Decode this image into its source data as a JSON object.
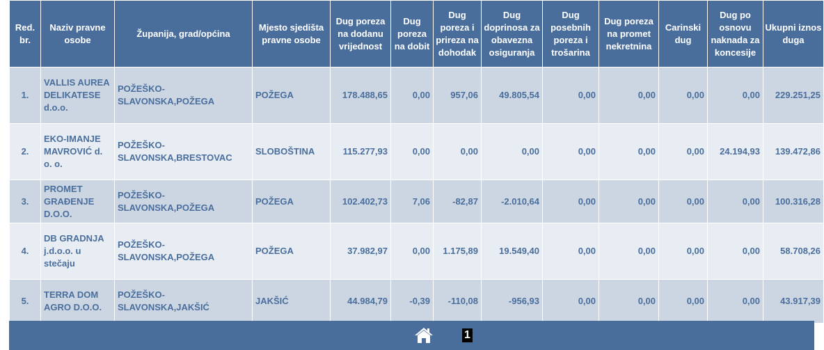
{
  "table": {
    "headers": [
      "Red. br.",
      "Naziv pravne osobe",
      "Županija, grad/općina",
      "Mjesto sjedišta pravne osobe",
      "Dug poreza na dodanu vrijednost",
      "Dug poreza na dobit",
      "Dug poreza i prireza na dohodak",
      "Dug doprinosa za obavezna osiguranja",
      "Dug posebnih poreza i trošarina",
      "Dug poreza na promet nekretnina",
      "Carinski dug",
      "Dug po osnovu naknada za koncesije",
      "Ukupni iznos duga"
    ],
    "rows": [
      {
        "rb": "1.",
        "naziv": "VALLIS AUREA DELIKATESE d.o.o.",
        "zupanija": "POŽEŠKO-SLAVONSKA,POŽEGA",
        "mjesto": "POŽEGA",
        "pdv": "178.488,65",
        "dobit": "0,00",
        "dohodak": "957,06",
        "doprinosi": "49.805,54",
        "posebni": "0,00",
        "promet": "0,00",
        "carinski": "0,00",
        "koncesije": "0,00",
        "ukupno": "229.251,25"
      },
      {
        "rb": "2.",
        "naziv": "EKO-IMANJE MAVROVIĆ d. o. o.",
        "zupanija": "POŽEŠKO-SLAVONSKA,BRESTOVAC",
        "mjesto": "SLOBOŠTINA",
        "pdv": "115.277,93",
        "dobit": "0,00",
        "dohodak": "0,00",
        "doprinosi": "0,00",
        "posebni": "0,00",
        "promet": "0,00",
        "carinski": "0,00",
        "koncesije": "24.194,93",
        "ukupno": "139.472,86"
      },
      {
        "rb": "3.",
        "naziv": "PROMET GRAĐENJE D.O.O.",
        "zupanija": "POŽEŠKO-SLAVONSKA,POŽEGA",
        "mjesto": "POŽEGA",
        "pdv": "102.402,73",
        "dobit": "7,06",
        "dohodak": "-82,87",
        "doprinosi": "-2.010,64",
        "posebni": "0,00",
        "promet": "0,00",
        "carinski": "0,00",
        "koncesije": "0,00",
        "ukupno": "100.316,28"
      },
      {
        "rb": "4.",
        "naziv": "DB GRADNJA j.d.o.o. u stečaju",
        "zupanija": "POŽEŠKO-SLAVONSKA,POŽEGA",
        "mjesto": "POŽEGA",
        "pdv": "37.982,97",
        "dobit": "0,00",
        "dohodak": "1.175,89",
        "doprinosi": "19.549,40",
        "posebni": "0,00",
        "promet": "0,00",
        "carinski": "0,00",
        "koncesije": "0,00",
        "ukupno": "58.708,26"
      },
      {
        "rb": "5.",
        "naziv": "TERRA DOM AGRO D.O.O.",
        "zupanija": "POŽEŠKO-SLAVONSKA,JAKŠIĆ",
        "mjesto": "JAKŠIĆ",
        "pdv": "44.984,79",
        "dobit": "-0,39",
        "dohodak": "-110,08",
        "doprinosi": "-956,93",
        "posebni": "0,00",
        "promet": "0,00",
        "carinski": "0,00",
        "koncesije": "0,00",
        "ukupno": "43.917,39"
      }
    ]
  },
  "pagination": {
    "home_icon": "home-icon",
    "current_page": "1"
  },
  "colors": {
    "header_bg": "#4a6e9c",
    "row_odd": "#ccd6e3",
    "row_even": "#e8edf4",
    "text": "#4a6e9c"
  }
}
